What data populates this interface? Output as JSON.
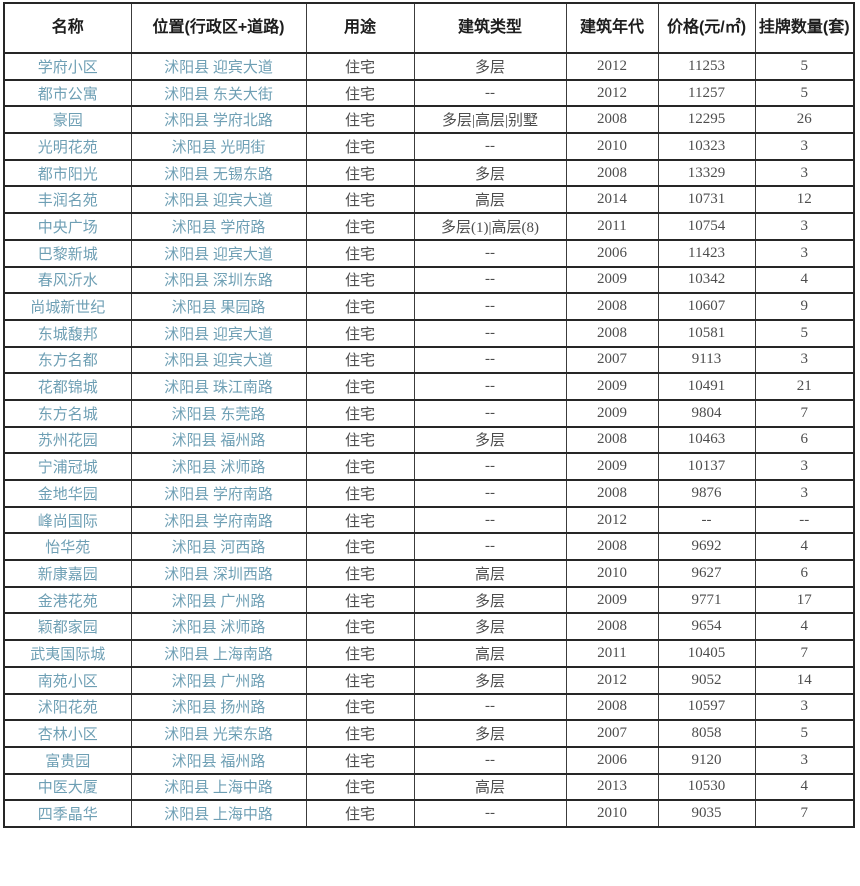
{
  "colors": {
    "link_text": "#6e9fb4",
    "body_text": "#4d4d4d",
    "header_text": "#1d1d1d",
    "border": "#262626"
  },
  "table": {
    "headers": [
      "名称",
      "位置(行政区+道路)",
      "用途",
      "建筑类型",
      "建筑年代",
      "价格(元/㎡)",
      "挂牌数量(套)"
    ],
    "rows": [
      [
        "学府小区",
        "沭阳县 迎宾大道",
        "住宅",
        "多层",
        "2012",
        "11253",
        "5"
      ],
      [
        "都市公寓",
        "沭阳县 东关大街",
        "住宅",
        "--",
        "2012",
        "11257",
        "5"
      ],
      [
        "豪园",
        "沭阳县 学府北路",
        "住宅",
        "多层|高层|别墅",
        "2008",
        "12295",
        "26"
      ],
      [
        "光明花苑",
        "沭阳县 光明街",
        "住宅",
        "--",
        "2010",
        "10323",
        "3"
      ],
      [
        "都市阳光",
        "沭阳县 无锡东路",
        "住宅",
        "多层",
        "2008",
        "13329",
        "3"
      ],
      [
        "丰润名苑",
        "沭阳县 迎宾大道",
        "住宅",
        "高层",
        "2014",
        "10731",
        "12"
      ],
      [
        "中央广场",
        "沭阳县 学府路",
        "住宅",
        "多层(1)|高层(8)",
        "2011",
        "10754",
        "3"
      ],
      [
        "巴黎新城",
        "沭阳县 迎宾大道",
        "住宅",
        "--",
        "2006",
        "11423",
        "3"
      ],
      [
        "春风沂水",
        "沭阳县 深圳东路",
        "住宅",
        "--",
        "2009",
        "10342",
        "4"
      ],
      [
        "尚城新世纪",
        "沭阳县 果园路",
        "住宅",
        "--",
        "2008",
        "10607",
        "9"
      ],
      [
        "东城馥邦",
        "沭阳县 迎宾大道",
        "住宅",
        "--",
        "2008",
        "10581",
        "5"
      ],
      [
        "东方名都",
        "沭阳县 迎宾大道",
        "住宅",
        "--",
        "2007",
        "9113",
        "3"
      ],
      [
        "花都锦城",
        "沭阳县 珠江南路",
        "住宅",
        "--",
        "2009",
        "10491",
        "21"
      ],
      [
        "东方名城",
        "沭阳县 东莞路",
        "住宅",
        "--",
        "2009",
        "9804",
        "7"
      ],
      [
        "苏州花园",
        "沭阳县 福州路",
        "住宅",
        "多层",
        "2008",
        "10463",
        "6"
      ],
      [
        "宁浦冠城",
        "沭阳县 沭师路",
        "住宅",
        "--",
        "2009",
        "10137",
        "3"
      ],
      [
        "金地华园",
        "沭阳县 学府南路",
        "住宅",
        "--",
        "2008",
        "9876",
        "3"
      ],
      [
        "峰尚国际",
        "沭阳县 学府南路",
        "住宅",
        "--",
        "2012",
        "--",
        "--"
      ],
      [
        "怡华苑",
        "沭阳县 河西路",
        "住宅",
        "--",
        "2008",
        "9692",
        "4"
      ],
      [
        "新康嘉园",
        "沭阳县 深圳西路",
        "住宅",
        "高层",
        "2010",
        "9627",
        "6"
      ],
      [
        "金港花苑",
        "沭阳县 广州路",
        "住宅",
        "多层",
        "2009",
        "9771",
        "17"
      ],
      [
        "颖都家园",
        "沭阳县 沭师路",
        "住宅",
        "多层",
        "2008",
        "9654",
        "4"
      ],
      [
        "武夷国际城",
        "沭阳县 上海南路",
        "住宅",
        "高层",
        "2011",
        "10405",
        "7"
      ],
      [
        "南苑小区",
        "沭阳县 广州路",
        "住宅",
        "多层",
        "2012",
        "9052",
        "14"
      ],
      [
        "沭阳花苑",
        "沭阳县 扬州路",
        "住宅",
        "--",
        "2008",
        "10597",
        "3"
      ],
      [
        "杏林小区",
        "沭阳县 光荣东路",
        "住宅",
        "多层",
        "2007",
        "8058",
        "5"
      ],
      [
        "富贵园",
        "沭阳县 福州路",
        "住宅",
        "--",
        "2006",
        "9120",
        "3"
      ],
      [
        "中医大厦",
        "沭阳县 上海中路",
        "住宅",
        "高层",
        "2013",
        "10530",
        "4"
      ],
      [
        "四季晶华",
        "沭阳县 上海中路",
        "住宅",
        "--",
        "2010",
        "9035",
        "7"
      ]
    ],
    "column_names": [
      "name-cell",
      "location-cell",
      "usage-cell",
      "building-type-cell",
      "year-cell",
      "price-cell",
      "count-cell"
    ]
  }
}
